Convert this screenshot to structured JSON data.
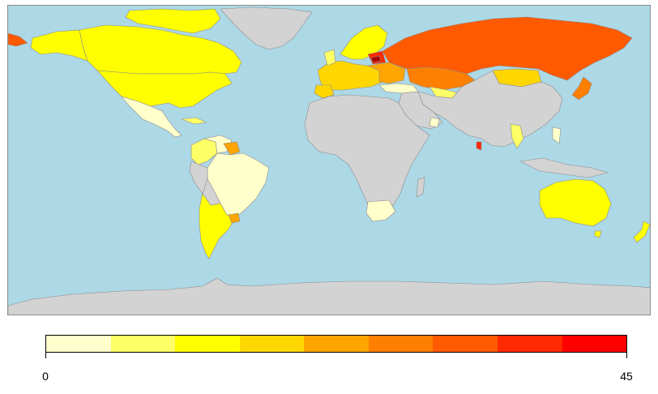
{
  "colors": {
    "ocean": "#add8e6",
    "no_data": "#d3d3d3",
    "border": "#8c8c8c"
  },
  "legend": {
    "min_label": "0",
    "max_label": "45",
    "min": 0,
    "max": 45,
    "bins": [
      "#ffffcc",
      "#ffff66",
      "#ffff00",
      "#ffd700",
      "#ffa500",
      "#ff7f00",
      "#ff5a00",
      "#ff2a00",
      "#ff0000"
    ]
  }
}
